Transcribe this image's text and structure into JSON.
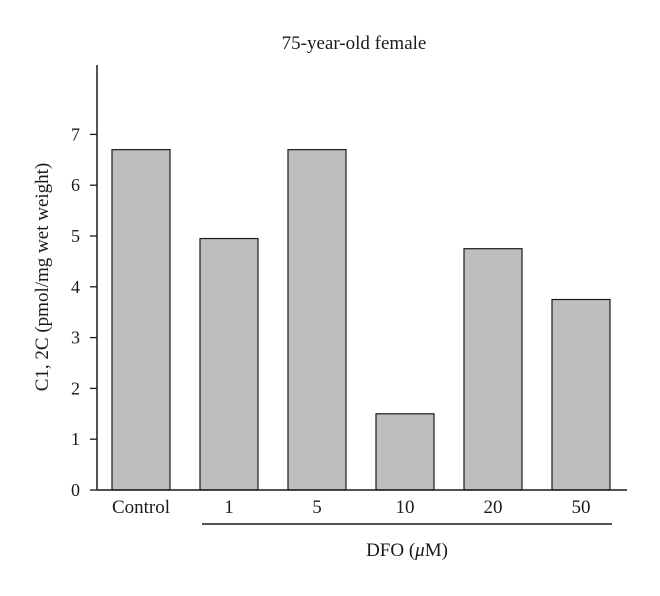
{
  "chart_data": {
    "type": "bar",
    "title": "75-year-old female",
    "ylabel": "C1, 2C (pmol/mg wet weight)",
    "xgroup_label": "DFO (μM)",
    "xgroup_label_prefix": "DFO (",
    "xgroup_label_mu": "μ",
    "xgroup_label_suffix": "M)",
    "categories": [
      "Control",
      "1",
      "5",
      "10",
      "20",
      "50"
    ],
    "values": [
      6.7,
      4.95,
      6.7,
      1.5,
      4.75,
      3.75
    ],
    "yticks": [
      0,
      1,
      2,
      3,
      4,
      5,
      6,
      7
    ],
    "ylim": [
      0,
      8.5
    ],
    "bar_color": "#bebebe",
    "grid": false,
    "legend": "none"
  }
}
